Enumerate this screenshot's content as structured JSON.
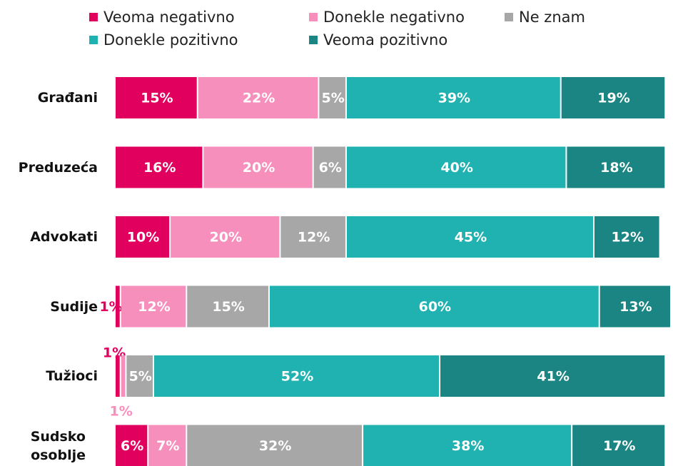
{
  "chart_data": {
    "type": "stacked-bar-horizontal",
    "categories": [
      "Građani",
      "Preduzeća",
      "Advokati",
      "Sudije",
      "Tužioci",
      "Sudsko osoblje"
    ],
    "series": [
      {
        "name": "Veoma negativno",
        "color": "#e2005f",
        "values": [
          15,
          16,
          10,
          1,
          1,
          6
        ],
        "value_labels": [
          "15%",
          "16%",
          "10%",
          "1%",
          "1%",
          "6%"
        ]
      },
      {
        "name": "Donekle negativno",
        "color": "#f78fbd",
        "values": [
          22,
          20,
          20,
          12,
          1,
          7
        ],
        "value_labels": [
          "22%",
          "20%",
          "20%",
          "12%",
          "1%",
          "7%"
        ]
      },
      {
        "name": "Ne znam",
        "color": "#a7a7a7",
        "values": [
          5,
          6,
          12,
          15,
          5,
          32
        ],
        "value_labels": [
          "5%",
          "6%",
          "12%",
          "15%",
          "5%",
          "32%"
        ]
      },
      {
        "name": "Donekle pozitivno",
        "color": "#20b2b0",
        "values": [
          39,
          40,
          45,
          60,
          52,
          38
        ],
        "value_labels": [
          "39%",
          "40%",
          "45%",
          "60%",
          "52%",
          "38%"
        ]
      },
      {
        "name": "Veoma pozitivno",
        "color": "#1a8582",
        "values": [
          19,
          18,
          12,
          13,
          41,
          17
        ],
        "value_labels": [
          "19%",
          "18%",
          "12%",
          "13%",
          "41%",
          "17%"
        ]
      }
    ]
  }
}
